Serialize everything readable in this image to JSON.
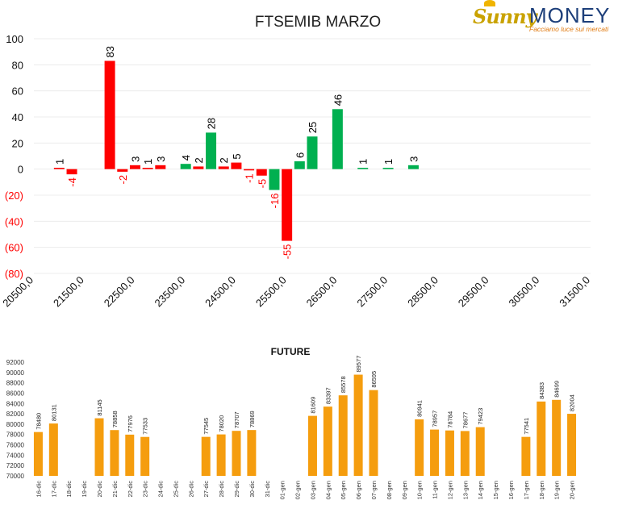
{
  "logo": {
    "sunny": "Sunny",
    "money": "MONEY",
    "tagline": "Facciamo luce sui mercati"
  },
  "chart_data": [
    {
      "type": "bar",
      "title": "FTSEMIB MARZO",
      "categories": [
        "20500,0",
        "21500,0",
        "22500,0",
        "23500,0",
        "24500,0",
        "25500,0",
        "26500,0",
        "27500,0",
        "28500,0",
        "29500,0",
        "30500,0",
        "31500,0"
      ],
      "ylim": [
        -80,
        100
      ],
      "y_ticks": [
        "100",
        "80",
        "60",
        "40",
        "20",
        "0",
        "(20)",
        "(40)",
        "(60)",
        "(80)"
      ],
      "grid": true,
      "colors": {
        "red": "#ff0000",
        "green": "#00b050",
        "negative_label": "#ff0000",
        "label": "#000000"
      },
      "bars": [
        {
          "strike": 21000,
          "value": 1,
          "color": "red"
        },
        {
          "strike": 21250,
          "value": -4,
          "color": "red"
        },
        {
          "strike": 22000,
          "value": 83,
          "color": "red"
        },
        {
          "strike": 22250,
          "value": -2,
          "color": "red"
        },
        {
          "strike": 22500,
          "value": 3,
          "color": "red"
        },
        {
          "strike": 22750,
          "value": 1,
          "color": "red"
        },
        {
          "strike": 23000,
          "value": 3,
          "color": "red"
        },
        {
          "strike": 23500,
          "value": 4,
          "color": "green"
        },
        {
          "strike": 23750,
          "value": 2,
          "color": "red"
        },
        {
          "strike": 24000,
          "value": 28,
          "color": "green"
        },
        {
          "strike": 24250,
          "value": 2,
          "color": "red"
        },
        {
          "strike": 24500,
          "value": 5,
          "color": "red"
        },
        {
          "strike": 24750,
          "value": -1,
          "color": "red"
        },
        {
          "strike": 25000,
          "value": -5,
          "color": "red"
        },
        {
          "strike": 25250,
          "value": -16,
          "color": "green"
        },
        {
          "strike": 25500,
          "value": -55,
          "color": "red"
        },
        {
          "strike": 25750,
          "value": 6,
          "color": "green"
        },
        {
          "strike": 26000,
          "value": 25,
          "color": "green"
        },
        {
          "strike": 26500,
          "value": 46,
          "color": "green"
        },
        {
          "strike": 27000,
          "value": 1,
          "color": "green"
        },
        {
          "strike": 27500,
          "value": 1,
          "color": "green"
        },
        {
          "strike": 28000,
          "value": 3,
          "color": "green"
        }
      ]
    },
    {
      "type": "bar",
      "title": "FUTURE",
      "ylim": [
        70000,
        92000
      ],
      "y_ticks": [
        "92000",
        "90000",
        "88000",
        "86000",
        "84000",
        "82000",
        "80000",
        "78000",
        "76000",
        "74000",
        "72000",
        "70000"
      ],
      "bar_color": "#f59d0e",
      "categories": [
        "16-dic",
        "17-dic",
        "18-dic",
        "19-dic",
        "20-dic",
        "21-dic",
        "22-dic",
        "23-dic",
        "24-dic",
        "25-dic",
        "26-dic",
        "27-dic",
        "28-dic",
        "29-dic",
        "30-dic",
        "31-dic",
        "01-gen",
        "02-gen",
        "03-gen",
        "04-gen",
        "05-gen",
        "06-gen",
        "07-gen",
        "08-gen",
        "09-gen",
        "10-gen",
        "11-gen",
        "12-gen",
        "13-gen",
        "14-gen",
        "15-gen",
        "16-gen",
        "17-gen",
        "18-gen",
        "19-gen",
        "20-gen"
      ],
      "values": [
        78480,
        80131,
        null,
        null,
        81145,
        78858,
        77976,
        77533,
        null,
        null,
        null,
        77545,
        78020,
        78707,
        78869,
        null,
        null,
        null,
        81609,
        83397,
        85578,
        89577,
        86595,
        null,
        null,
        80941,
        78957,
        78784,
        78677,
        79423,
        null,
        null,
        77541,
        84383,
        84699,
        82004
      ]
    }
  ]
}
